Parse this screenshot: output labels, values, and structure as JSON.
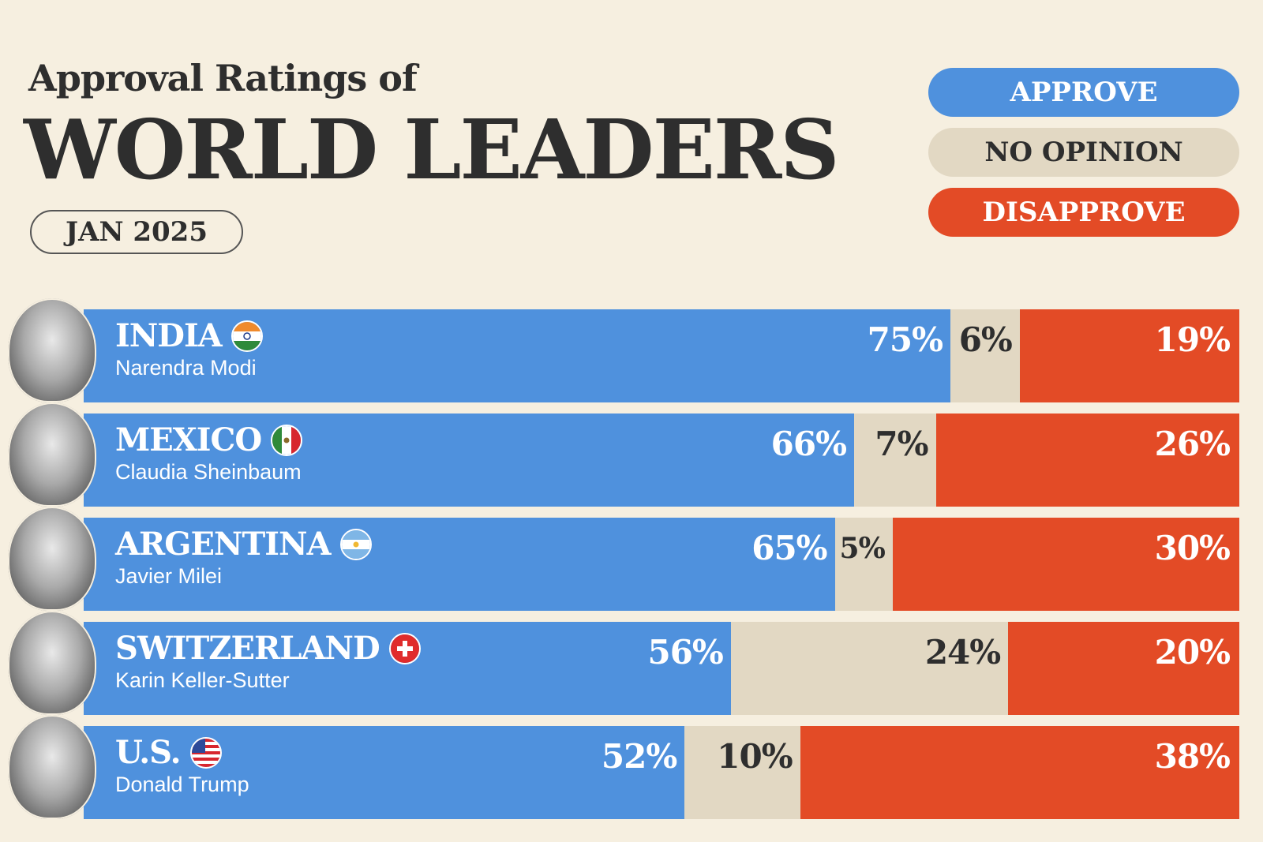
{
  "header": {
    "subtitle": "Approval Ratings of",
    "title": "WORLD LEADERS",
    "date": "JAN 2025"
  },
  "legend": {
    "approve": "APPROVE",
    "no_opinion": "NO OPINION",
    "disapprove": "DISAPPROVE"
  },
  "colors": {
    "approve": "#4f91dd",
    "no_opinion": "#e2d8c3",
    "disapprove": "#e34b26",
    "background": "#f6efe0"
  },
  "rows": [
    {
      "country": "INDIA",
      "leader": "Narendra Modi",
      "approve": "75%",
      "no_opinion": "6%",
      "disapprove": "19%",
      "flag_icon": "india-flag-icon"
    },
    {
      "country": "MEXICO",
      "leader": "Claudia Sheinbaum",
      "approve": "66%",
      "no_opinion": "7%",
      "disapprove": "26%",
      "flag_icon": "mexico-flag-icon"
    },
    {
      "country": "ARGENTINA",
      "leader": "Javier Milei",
      "approve": "65%",
      "no_opinion": "5%",
      "disapprove": "30%",
      "flag_icon": "argentina-flag-icon"
    },
    {
      "country": "SWITZERLAND",
      "leader": "Karin Keller-Sutter",
      "approve": "56%",
      "no_opinion": "24%",
      "disapprove": "20%",
      "flag_icon": "switzerland-flag-icon"
    },
    {
      "country": "U.S.",
      "leader": "Donald Trump",
      "approve": "52%",
      "no_opinion": "10%",
      "disapprove": "38%",
      "flag_icon": "us-flag-icon"
    }
  ],
  "chart_data": {
    "type": "bar",
    "orientation": "horizontal",
    "stacked": true,
    "title": "WORLD LEADERS",
    "subtitle": "Approval Ratings of",
    "categories": [
      "INDIA",
      "MEXICO",
      "ARGENTINA",
      "SWITZERLAND",
      "U.S."
    ],
    "series": [
      {
        "name": "APPROVE",
        "values": [
          75,
          66,
          65,
          56,
          52
        ]
      },
      {
        "name": "NO OPINION",
        "values": [
          6,
          7,
          5,
          24,
          10
        ]
      },
      {
        "name": "DISAPPROVE",
        "values": [
          19,
          26,
          30,
          20,
          38
        ]
      }
    ],
    "legend_position": "top-right",
    "grid": false
  }
}
